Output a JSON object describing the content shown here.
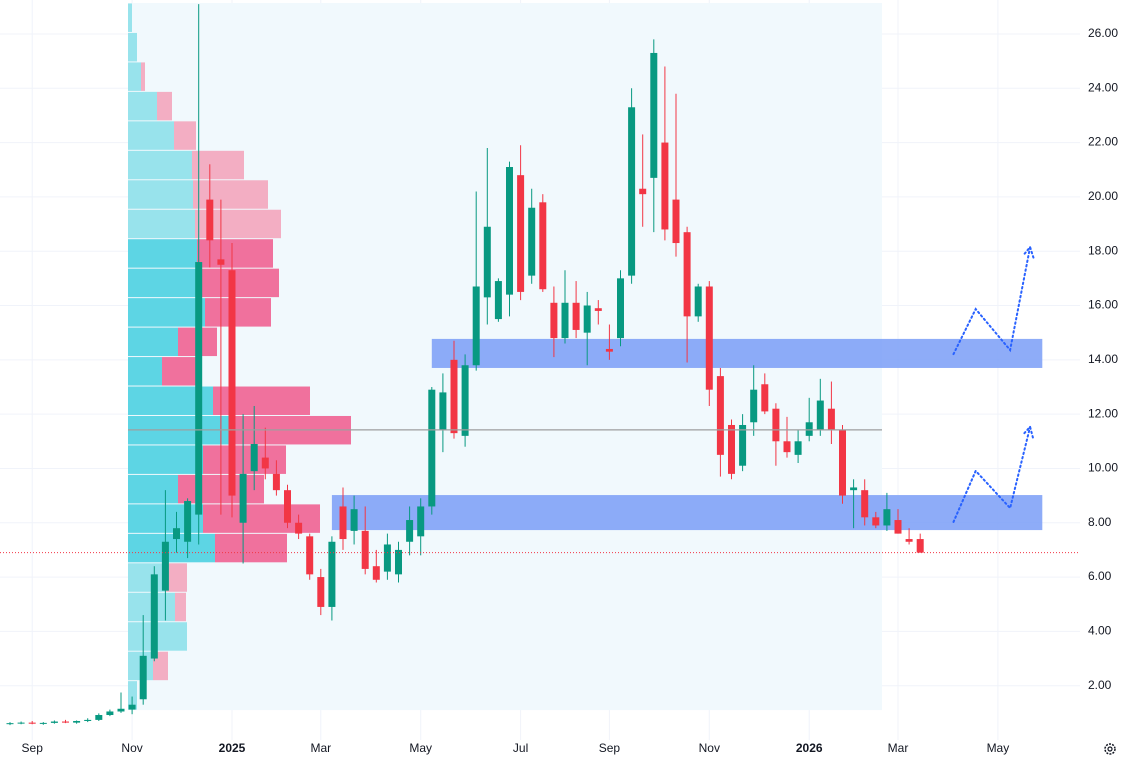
{
  "chart_data": {
    "type": "candlestick",
    "categories": [
      null,
      null,
      "Sep",
      null,
      null,
      null,
      null,
      null,
      null,
      null,
      null,
      "Nov",
      null,
      null,
      null,
      null,
      null,
      null,
      null,
      null,
      "2025",
      null,
      null,
      null,
      null,
      null,
      null,
      null,
      "Mar",
      null,
      null,
      null,
      null,
      null,
      null,
      null,
      null,
      "May",
      null,
      null,
      null,
      null,
      null,
      null,
      null,
      null,
      "Jul",
      null,
      null,
      null,
      null,
      null,
      null,
      null,
      "Sep",
      null,
      null,
      null,
      null,
      null,
      null,
      null,
      null,
      "Nov",
      null,
      null,
      null,
      null,
      null,
      null,
      null,
      null,
      "2026",
      null,
      null,
      null,
      null,
      null,
      null,
      null,
      "Mar",
      null,
      null,
      null,
      null,
      null,
      null,
      null,
      null,
      "May",
      null,
      null,
      null,
      null,
      null,
      null,
      null
    ],
    "open": [
      0.6,
      0.62,
      0.64,
      0.6,
      0.63,
      0.68,
      0.64,
      0.7,
      0.74,
      0.92,
      1.05,
      1.12,
      1.5,
      3.0,
      5.5,
      7.4,
      7.3,
      8.3,
      19.9,
      17.7,
      17.3,
      8.0,
      9.9,
      10.4,
      9.8,
      9.2,
      8.0,
      7.5,
      6.0,
      4.9,
      8.6,
      7.7,
      7.7,
      6.4,
      6.2,
      6.1,
      7.3,
      7.5,
      8.6,
      11.4,
      14.0,
      11.2,
      13.8,
      16.3,
      15.5,
      16.4,
      20.8,
      17.1,
      19.8,
      16.1,
      14.8,
      16.1,
      15.0,
      15.9,
      14.4,
      14.8,
      17.1,
      20.3,
      20.7,
      22.0,
      19.9,
      18.7,
      15.6,
      16.7,
      13.4,
      11.6,
      10.1,
      11.7,
      13.1,
      12.2,
      11.0,
      10.5,
      11.2,
      11.4,
      12.2,
      11.4,
      9.2,
      9.2,
      8.2,
      7.9,
      8.1,
      7.4,
      7.4,
      null,
      null,
      null,
      null,
      null,
      null,
      null,
      null,
      null,
      null,
      null,
      null,
      null,
      null
    ],
    "high": [
      0.66,
      0.68,
      0.7,
      0.66,
      0.72,
      0.74,
      0.72,
      0.8,
      0.98,
      1.12,
      1.75,
      1.6,
      4.6,
      6.4,
      9.2,
      8.4,
      8.9,
      27.1,
      21.2,
      19.9,
      18.3,
      12.0,
      12.3,
      11.5,
      10.3,
      9.4,
      8.3,
      7.6,
      6.3,
      7.5,
      9.3,
      9.0,
      8.6,
      7.0,
      7.6,
      7.3,
      8.6,
      8.9,
      13.0,
      13.5,
      14.7,
      14.2,
      20.2,
      21.8,
      17.0,
      21.3,
      21.9,
      20.3,
      20.1,
      16.7,
      17.3,
      16.9,
      16.5,
      16.2,
      15.3,
      17.3,
      24.0,
      22.3,
      25.8,
      24.8,
      23.8,
      18.9,
      16.8,
      16.9,
      13.7,
      11.8,
      12.0,
      13.8,
      13.5,
      12.4,
      11.9,
      11.4,
      12.6,
      13.3,
      13.2,
      11.6,
      9.6,
      9.6,
      8.4,
      9.1,
      8.5,
      7.8,
      7.6,
      null,
      null,
      null,
      null,
      null,
      null,
      null,
      null,
      null,
      null,
      null,
      null,
      null,
      null
    ],
    "low": [
      0.55,
      0.58,
      0.58,
      0.56,
      0.6,
      0.62,
      0.6,
      0.66,
      0.7,
      0.88,
      1.0,
      0.95,
      1.3,
      2.9,
      4.4,
      6.9,
      6.7,
      7.2,
      17.4,
      8.3,
      8.2,
      6.5,
      9.2,
      9.6,
      9.0,
      7.8,
      7.4,
      5.9,
      4.6,
      4.4,
      7.0,
      7.2,
      6.1,
      5.8,
      5.9,
      5.8,
      6.8,
      6.8,
      8.3,
      10.6,
      11.1,
      10.8,
      13.6,
      15.3,
      15.4,
      15.6,
      16.2,
      16.8,
      16.5,
      14.1,
      14.6,
      14.8,
      13.8,
      15.3,
      14.0,
      14.5,
      16.8,
      18.9,
      18.7,
      18.4,
      17.8,
      13.9,
      15.4,
      12.3,
      9.7,
      9.6,
      9.9,
      11.2,
      12.0,
      10.1,
      10.4,
      10.2,
      11.0,
      11.2,
      10.9,
      8.7,
      7.8,
      7.9,
      7.8,
      7.7,
      7.6,
      7.2,
      6.9,
      null,
      null,
      null,
      null,
      null,
      null,
      null,
      null,
      null,
      null,
      null,
      null,
      null,
      null
    ],
    "close": [
      0.62,
      0.64,
      0.6,
      0.63,
      0.68,
      0.64,
      0.7,
      0.74,
      0.92,
      1.05,
      1.15,
      1.3,
      3.1,
      6.1,
      7.3,
      7.8,
      8.8,
      17.6,
      18.4,
      17.5,
      9.0,
      9.8,
      10.9,
      10.0,
      9.2,
      8.0,
      7.6,
      6.1,
      4.9,
      7.3,
      7.4,
      8.5,
      6.3,
      5.9,
      7.2,
      7.0,
      8.1,
      8.6,
      12.9,
      12.8,
      11.3,
      13.8,
      16.7,
      18.9,
      16.9,
      21.1,
      16.5,
      19.6,
      16.6,
      14.8,
      16.1,
      15.1,
      16.0,
      15.8,
      14.3,
      17.0,
      23.3,
      20.1,
      25.3,
      18.8,
      18.3,
      15.6,
      16.7,
      12.9,
      10.5,
      9.8,
      11.6,
      12.9,
      12.1,
      11.0,
      10.6,
      11.0,
      11.7,
      12.5,
      11.4,
      9.0,
      9.3,
      8.2,
      7.9,
      8.5,
      7.6,
      7.3,
      6.9,
      null,
      null,
      null,
      null,
      null,
      null,
      null,
      null,
      null,
      null,
      null,
      null,
      null,
      null
    ],
    "up_color": "#089981",
    "down_color": "#f23645",
    "ylim": [
      0,
      27.25
    ],
    "yticks": [
      {
        "value": 2,
        "label": "2.00"
      },
      {
        "value": 4,
        "label": "4.00"
      },
      {
        "value": 6,
        "label": "6.00"
      },
      {
        "value": 8,
        "label": "8.00"
      },
      {
        "value": 10,
        "label": "10.00"
      },
      {
        "value": 12,
        "label": "12.00"
      },
      {
        "value": 14,
        "label": "14.00"
      },
      {
        "value": 16,
        "label": "16.00"
      },
      {
        "value": 18,
        "label": "18.00"
      },
      {
        "value": 20,
        "label": "20.00"
      },
      {
        "value": 22,
        "label": "22.00"
      },
      {
        "value": 24,
        "label": "24.00"
      },
      {
        "value": 26,
        "label": "26.00"
      }
    ],
    "grid": true,
    "profile": {
      "range": [
        1.1,
        27.14
      ],
      "up": [
        9,
        25,
        59,
        47,
        37,
        87,
        75,
        50,
        75,
        102,
        85,
        34,
        50,
        77,
        69,
        69,
        67,
        65,
        64,
        46,
        29,
        13,
        9,
        4
      ],
      "down": [
        0,
        15,
        0,
        11,
        22,
        72,
        117,
        86,
        83,
        121,
        97,
        35,
        39,
        66,
        82,
        76,
        86,
        75,
        52,
        22,
        15,
        4,
        0,
        0
      ],
      "value_area": [
        6.5,
        18.5
      ],
      "up_color": "#4dd0e1",
      "up_color_light": "#8ee0ea",
      "down_color": "#f06292",
      "down_color_light": "#f3a5bd",
      "poc": 11.42
    },
    "zones": [
      {
        "low": 13.7,
        "high": 14.77,
        "start": 38,
        "end": 93
      },
      {
        "low": 7.73,
        "high": 9.02,
        "start": 29,
        "end": 93
      }
    ],
    "zone_color": "#7a9ef7",
    "projections": [
      {
        "x": [
          85,
          87,
          90.1,
          91.9
        ],
        "values": [
          14.21,
          15.87,
          14.36,
          18.15
        ]
      },
      {
        "x": [
          85,
          87,
          90.1,
          91.9
        ],
        "values": [
          8.03,
          9.91,
          8.54,
          11.53
        ]
      }
    ],
    "projection_color": "#2962ff"
  }
}
